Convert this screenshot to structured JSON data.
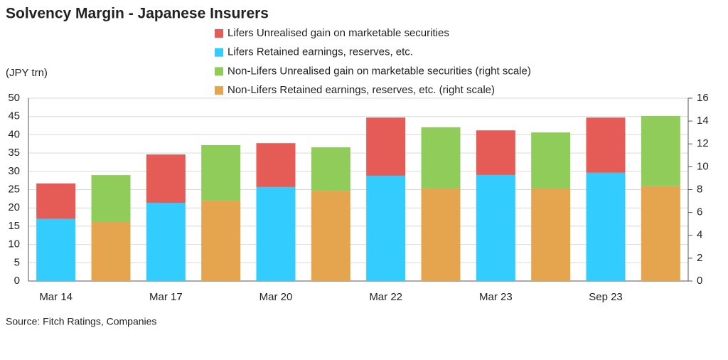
{
  "chart_data": {
    "type": "stacked_bar",
    "title": "Solvency Margin - Japanese Insurers",
    "y_label": "(JPY trn)",
    "source": "Source: Fitch Ratings, Companies",
    "categories": [
      "Mar 14",
      null,
      "Mar 17",
      null,
      "Mar 20",
      null,
      "Mar 22",
      null,
      "Mar 23",
      null,
      "Sep 23",
      null
    ],
    "series": [
      {
        "name": "Lifers Unrealised gain on marketable securities",
        "color": "#e55b55",
        "values": [
          9.7,
          null,
          13.2,
          null,
          12.0,
          null,
          15.9,
          null,
          12.2,
          null,
          15.1,
          null
        ]
      },
      {
        "name": "Lifers Retained earnings, reserves, etc.",
        "color": "#33ccff",
        "values": [
          17.0,
          null,
          21.4,
          null,
          25.7,
          null,
          28.8,
          null,
          29.0,
          null,
          29.6,
          null
        ]
      },
      {
        "name": "Non-Lifers Unrealised gain on marketable securities (right scale)",
        "color": "#8fcc5a",
        "axis": "y2",
        "values": [
          null,
          4.1,
          null,
          4.85,
          null,
          3.8,
          null,
          5.35,
          null,
          4.9,
          null,
          6.15
        ]
      },
      {
        "name": "Non-Lifers Retained earnings, reserves, etc. (right scale)",
        "color": "#e5a54f",
        "axis": "y2",
        "values": [
          null,
          5.17,
          null,
          7.04,
          null,
          7.9,
          null,
          8.1,
          null,
          8.1,
          null,
          8.3
        ]
      }
    ],
    "ylim": [
      0,
      50
    ],
    "yticks": [
      0,
      5,
      10,
      15,
      20,
      25,
      30,
      35,
      40,
      45,
      50
    ],
    "y2lim": [
      0,
      16
    ],
    "y2ticks": [
      0,
      2,
      4,
      6,
      8,
      10,
      12,
      14,
      16
    ],
    "grid": true
  }
}
